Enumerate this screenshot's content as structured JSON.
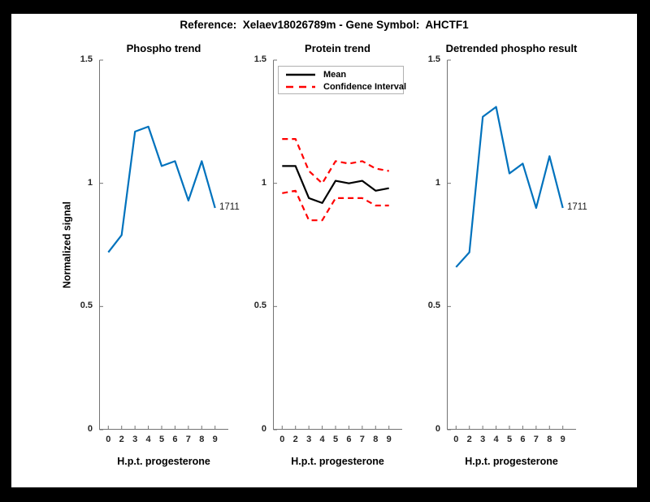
{
  "figure": {
    "title": "Reference:  Xelaev18026789m - Gene Symbol:  AHCTF1",
    "frame_color": "#000000",
    "background": "#FFFFFF"
  },
  "colors": {
    "blue": "#0072BD",
    "red": "#FF0000",
    "black": "#000000",
    "axis": "#737373",
    "tick_text": "#262626"
  },
  "chart_data": [
    {
      "type": "line",
      "title": "Phospho trend",
      "xlabel": "H.p.t. progesterone",
      "ylabel": "Normalized signal",
      "x_tick_labels": [
        "0",
        "2",
        "3",
        "4",
        "5",
        "6",
        "7",
        "8",
        "9"
      ],
      "y_tick_values": [
        0,
        0.5,
        1,
        1.5
      ],
      "y_tick_labels": [
        "0",
        "0.5",
        "1",
        "1.5"
      ],
      "ylim": [
        0,
        1.5
      ],
      "grid": false,
      "end_label": "1711",
      "series": [
        {
          "name": "phospho-signal",
          "color": "#0072BD",
          "style": "solid",
          "values": [
            0.72,
            0.79,
            1.21,
            1.23,
            1.07,
            1.09,
            0.93,
            1.09,
            0.9
          ]
        }
      ]
    },
    {
      "type": "line",
      "title": "Protein trend",
      "xlabel": "H.p.t. progesterone",
      "ylabel": "",
      "x_tick_labels": [
        "0",
        "2",
        "3",
        "4",
        "5",
        "6",
        "7",
        "8",
        "9"
      ],
      "y_tick_values": [
        0,
        0.5,
        1,
        1.5
      ],
      "y_tick_labels": [
        "0",
        "0.5",
        "1",
        "1.5"
      ],
      "ylim": [
        0,
        1.5
      ],
      "grid": false,
      "legend": {
        "position": "top-left",
        "entries": [
          {
            "label": "Mean",
            "color": "#000000",
            "style": "solid"
          },
          {
            "label": "Confidence Interval",
            "color": "#FF0000",
            "style": "dashed"
          }
        ]
      },
      "series": [
        {
          "name": "mean",
          "color": "#000000",
          "style": "solid",
          "values": [
            1.07,
            1.07,
            0.94,
            0.92,
            1.01,
            1.0,
            1.01,
            0.97,
            0.98
          ]
        },
        {
          "name": "ci-upper",
          "color": "#FF0000",
          "style": "dashed",
          "values": [
            1.18,
            1.18,
            1.05,
            1.0,
            1.09,
            1.08,
            1.09,
            1.06,
            1.05
          ]
        },
        {
          "name": "ci-lower",
          "color": "#FF0000",
          "style": "dashed",
          "values": [
            0.96,
            0.97,
            0.85,
            0.85,
            0.94,
            0.94,
            0.94,
            0.91,
            0.91
          ]
        }
      ]
    },
    {
      "type": "line",
      "title": "Detrended phospho result",
      "xlabel": "H.p.t. progesterone",
      "ylabel": "",
      "x_tick_labels": [
        "0",
        "2",
        "3",
        "4",
        "5",
        "6",
        "7",
        "8",
        "9"
      ],
      "y_tick_values": [
        0,
        0.5,
        1,
        1.5
      ],
      "y_tick_labels": [
        "0",
        "0.5",
        "1",
        "1.5"
      ],
      "ylim": [
        0,
        1.5
      ],
      "grid": false,
      "end_label": "1711",
      "series": [
        {
          "name": "detrended-phospho-signal",
          "color": "#0072BD",
          "style": "solid",
          "values": [
            0.66,
            0.72,
            1.27,
            1.31,
            1.04,
            1.08,
            0.9,
            1.11,
            0.9
          ]
        }
      ]
    }
  ]
}
